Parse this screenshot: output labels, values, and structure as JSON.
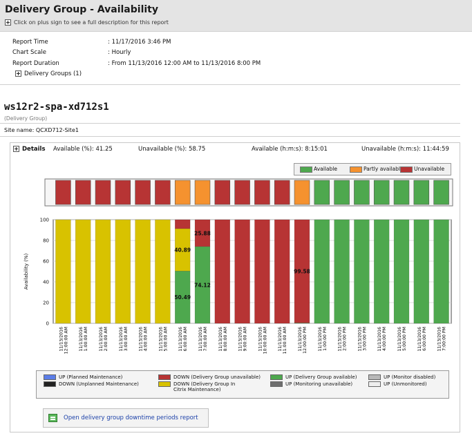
{
  "header": {
    "title": "Delivery Group - Availability",
    "subtitle": "Click on plus sign to see a full description for this report"
  },
  "meta": {
    "report_time_label": "Report Time",
    "report_time_value": ": 11/17/2016 3:46 PM",
    "chart_scale_label": "Chart Scale",
    "chart_scale_value": ": Hourly",
    "report_duration_label": "Report Duration",
    "report_duration_value": ": From 11/13/2016 12:00 AM to 11/13/2016 8:00 PM",
    "delivery_groups_label": "Delivery Groups (1)"
  },
  "server": {
    "name": "ws12r2-spa-xd712s1",
    "type": "(Delivery Group)",
    "site": "Site name: QCXD712-Site1"
  },
  "details": {
    "label": "Details",
    "available_pct": "Available (%): 41.25",
    "unavailable_pct": "Unavailable (%): 58.75",
    "available_hms": "Available (h:m:s): 8:15:01",
    "unavailable_hms": "Unavailable (h:m:s): 11:44:59"
  },
  "legend_top": {
    "available": "Available",
    "partly": "Partly available",
    "unavailable": "Unavailable"
  },
  "legend_bottom": {
    "up_planned": "UP (Planned Maintenance)",
    "down_unplanned": "DOWN (Unplanned Maintenance)",
    "down_unavailable": "DOWN (Delivery Group unavailable)",
    "down_citrix": "DOWN (Delivery Group In Citrix Maintenance)",
    "up_available": "UP (Delivery Group available)",
    "up_monitoring_unavail": "UP (Monitoring unavailable)",
    "up_monitor_disabled": "UP (Monitor disabled)",
    "up_unmonitored": "UP (Unmonitored)"
  },
  "link": {
    "text": "Open delivery group downtime periods report",
    "icon": "report-icon"
  },
  "colors": {
    "available": "#4ea84e",
    "partly": "#f5922f",
    "unavailable": "#b73434",
    "citrix_maintenance": "#d8c200",
    "planned": "#5b7de8",
    "unplanned": "#222222",
    "monitoring_unavailable": "#6e6e6e",
    "monitor_disabled": "#b8b8b8",
    "unmonitored": "#eeeeee"
  },
  "chart_data": {
    "type": "bar",
    "stacked": true,
    "ylabel": "Availability (%)",
    "ylim": [
      0,
      100
    ],
    "yticks": [
      0,
      20,
      40,
      60,
      80,
      100
    ],
    "categories": [
      "11/13/2016 12:00:00 AM",
      "11/13/2016 1:00:00 AM",
      "11/13/2016 2:00:00 AM",
      "11/13/2016 3:00:00 AM",
      "11/13/2016 4:00:00 AM",
      "11/13/2016 5:00:00 AM",
      "11/13/2016 6:00:00 AM",
      "11/13/2016 7:00:00 AM",
      "11/13/2016 8:00:00 AM",
      "11/13/2016 9:00:00 AM",
      "11/13/2016 10:00:00 AM",
      "11/13/2016 11:00:00 AM",
      "11/13/2016 12:00:00 PM",
      "11/13/2016 1:00:00 PM",
      "11/13/2016 2:00:00 PM",
      "11/13/2016 3:00:00 PM",
      "11/13/2016 4:00:00 PM",
      "11/13/2016 5:00:00 PM",
      "11/13/2016 6:00:00 PM",
      "11/13/2016 7:00:00 PM"
    ],
    "series": [
      {
        "name": "UP (Delivery Group available)",
        "color": "#4ea84e",
        "values": [
          0,
          0,
          0,
          0,
          0,
          0,
          50.49,
          74.12,
          0,
          0,
          0,
          0,
          0.42,
          100,
          100,
          100,
          100,
          100,
          100,
          100
        ]
      },
      {
        "name": "DOWN (Delivery Group In Citrix Maintenance)",
        "color": "#d8c200",
        "values": [
          100,
          100,
          100,
          100,
          100,
          100,
          40.89,
          0,
          0,
          0,
          0,
          0,
          0,
          0,
          0,
          0,
          0,
          0,
          0,
          0
        ]
      },
      {
        "name": "DOWN (Delivery Group unavailable)",
        "color": "#b73434",
        "values": [
          0,
          0,
          0,
          0,
          0,
          0,
          8.62,
          25.88,
          100,
          100,
          100,
          100,
          99.58,
          0,
          0,
          0,
          0,
          0,
          0,
          0
        ]
      }
    ],
    "data_labels": [
      {
        "category_index": 6,
        "series": "UP (Delivery Group available)",
        "text": "50.49"
      },
      {
        "category_index": 6,
        "series": "DOWN (Delivery Group In Citrix Maintenance)",
        "text": "40.89"
      },
      {
        "category_index": 7,
        "series": "UP (Delivery Group available)",
        "text": "74.12"
      },
      {
        "category_index": 7,
        "series": "DOWN (Delivery Group unavailable)",
        "text": "25.88"
      },
      {
        "category_index": 12,
        "series": "DOWN (Delivery Group unavailable)",
        "text": "99.58"
      }
    ],
    "status_strip": [
      "unavailable",
      "unavailable",
      "unavailable",
      "unavailable",
      "unavailable",
      "unavailable",
      "partly",
      "partly",
      "unavailable",
      "unavailable",
      "unavailable",
      "unavailable",
      "partly",
      "available",
      "available",
      "available",
      "available",
      "available",
      "available",
      "available"
    ],
    "grid": true
  }
}
